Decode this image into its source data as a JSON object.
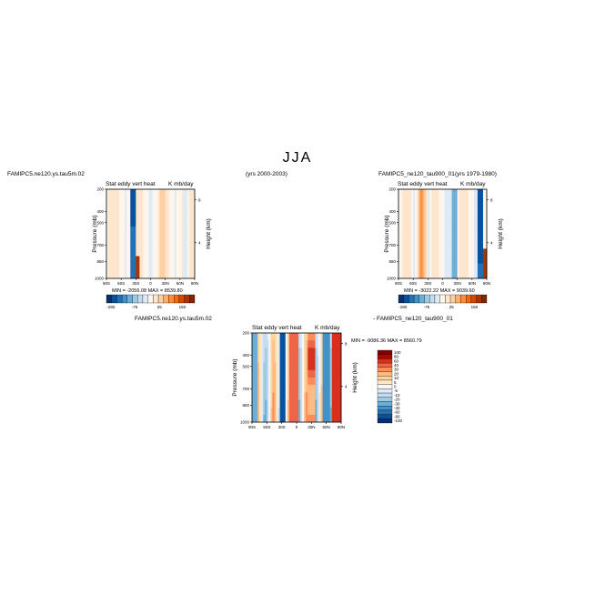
{
  "main_title": "JJA",
  "panels": [
    {
      "id": "p1",
      "case_label": "FAMIPC5.ne120.ys.tau5m.02",
      "years_label": "(yrs 2000-2003)",
      "title": "Stat eddy vert heat",
      "units": "K mb/day",
      "stats": "MIN = -2056.08   MAX = 8539.80",
      "ylabel": "Pressure (mb)",
      "y2label": "Height (km)"
    },
    {
      "id": "p2",
      "case_label": "FAMIPC5_ne120_tau900_01",
      "years_label": "(yrs 1979-1980)",
      "title": "Stat eddy vert heat",
      "units": "K mb/day",
      "stats": "MIN = -3022.22   MAX = 9039.60",
      "ylabel": "Pressure (mb)",
      "y2label": "Height (km)"
    },
    {
      "id": "p3",
      "case_label": "FAMIPC5.ne120.ys.tau5m.02",
      "minus_label": "- FAMIPC5_ne120_tau900_01",
      "title": "Stat eddy vert heat",
      "units": "K mb/day",
      "stats": "MIN = -9086.36   MAX = 8560.79",
      "ylabel": "Pressure (mb)",
      "y2label": "Height (km)"
    }
  ],
  "axes": {
    "x_ticks": [
      "90S",
      "60S",
      "30S",
      "0",
      "30N",
      "60N",
      "90N"
    ],
    "y_ticks": [
      "200",
      "400",
      "500",
      "700",
      "850",
      "1000"
    ],
    "y2_ticks": [
      "8",
      "4"
    ]
  },
  "colorbar_top": {
    "labels": [
      "-280",
      "-75",
      "25",
      "150"
    ],
    "colors": [
      "#08306b",
      "#08519c",
      "#2171b5",
      "#4292c6",
      "#6baed6",
      "#9ecae1",
      "#c6dbef",
      "#deebf7",
      "#fff5eb",
      "#fee6ce",
      "#fdd0a2",
      "#fdae6b",
      "#fd8d3c",
      "#f16913",
      "#d94801",
      "#a63603",
      "#7f2704"
    ]
  },
  "colorbar_diff": {
    "labels": [
      "100",
      "80",
      "60",
      "40",
      "30",
      "20",
      "10",
      "5",
      "0",
      "-5",
      "-10",
      "-20",
      "-30",
      "-40",
      "-60",
      "-80",
      "-100"
    ],
    "colors": [
      "#7f0000",
      "#b30000",
      "#d7301f",
      "#ef6548",
      "#fc8d59",
      "#fdbb84",
      "#fdd49e",
      "#fee8c8",
      "#f7f7f7",
      "#deebf7",
      "#c6dbef",
      "#9ecae1",
      "#6baed6",
      "#4292c6",
      "#2171b5",
      "#08519c",
      "#08306b"
    ]
  },
  "chart_data": [
    {
      "type": "heatmap",
      "title": "Stat eddy vert heat",
      "units": "K mb/day",
      "xlabel": "",
      "ylabel": "Pressure (mb)",
      "x": [
        "90S",
        "60S",
        "30S",
        "0",
        "30N",
        "60N",
        "90N"
      ],
      "y": [
        200,
        400,
        500,
        700,
        850,
        1000
      ],
      "min": -2056.08,
      "max": 8539.8
    },
    {
      "type": "heatmap",
      "title": "Stat eddy vert heat",
      "units": "K mb/day",
      "xlabel": "",
      "ylabel": "Pressure (mb)",
      "x": [
        "90S",
        "60S",
        "30S",
        "0",
        "30N",
        "60N",
        "90N"
      ],
      "y": [
        200,
        400,
        500,
        700,
        850,
        1000
      ],
      "min": -3022.22,
      "max": 9039.6
    },
    {
      "type": "heatmap",
      "title": "Stat eddy vert heat",
      "units": "K mb/day",
      "xlabel": "",
      "ylabel": "Pressure (mb)",
      "x": [
        "90S",
        "60S",
        "30S",
        "0",
        "30N",
        "60N",
        "90N"
      ],
      "y": [
        200,
        400,
        500,
        700,
        850,
        1000
      ],
      "min": -9086.36,
      "max": 8560.79
    }
  ]
}
